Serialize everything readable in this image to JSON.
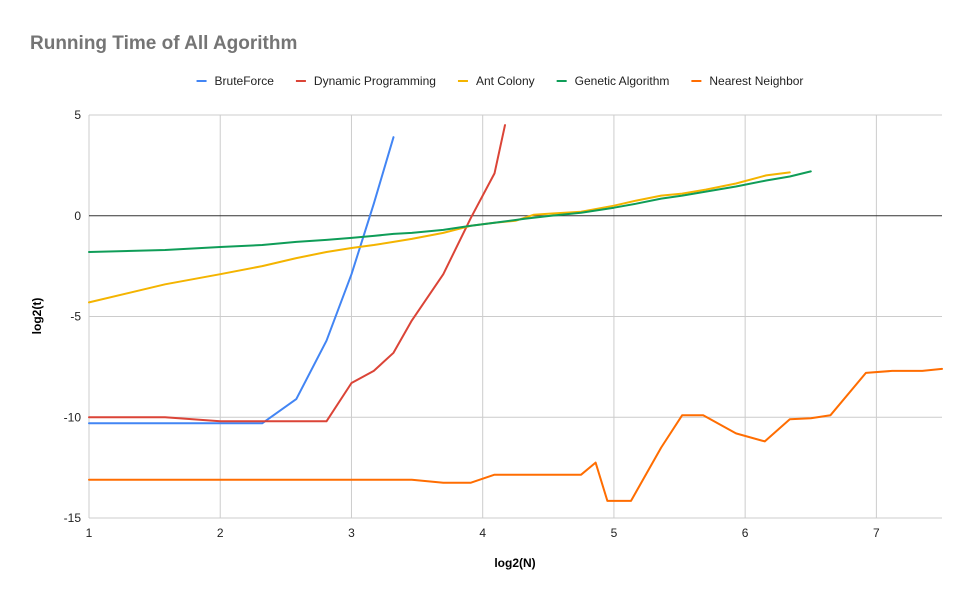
{
  "chart_data": {
    "type": "line",
    "title": "Running Time of All Agorithm",
    "xlabel": "log2(N)",
    "ylabel": "log2(t)",
    "xlim": [
      1,
      7.5
    ],
    "ylim": [
      -15,
      5
    ],
    "xticks": [
      "1",
      "2",
      "3",
      "4",
      "5",
      "6",
      "7"
    ],
    "yticks": [
      "5",
      "0",
      "-5",
      "-10",
      "-15"
    ],
    "grid": true,
    "legend_position": "top",
    "series": [
      {
        "name": "BruteForce",
        "color": "#4285f4",
        "points": [
          [
            1,
            -10.3
          ],
          [
            1.58,
            -10.3
          ],
          [
            2,
            -10.3
          ],
          [
            2.32,
            -10.3
          ],
          [
            2.58,
            -9.1
          ],
          [
            2.81,
            -6.2
          ],
          [
            3.0,
            -2.9
          ],
          [
            3.17,
            0.6
          ],
          [
            3.32,
            3.9
          ]
        ]
      },
      {
        "name": "Dynamic Programming",
        "color": "#db4437",
        "points": [
          [
            1,
            -10.0
          ],
          [
            1.58,
            -10.0
          ],
          [
            2,
            -10.2
          ],
          [
            2.32,
            -10.2
          ],
          [
            2.58,
            -10.2
          ],
          [
            2.81,
            -10.2
          ],
          [
            3.0,
            -8.3
          ],
          [
            3.17,
            -7.7
          ],
          [
            3.32,
            -6.8
          ],
          [
            3.46,
            -5.2
          ],
          [
            3.7,
            -2.9
          ],
          [
            3.91,
            -0.1
          ],
          [
            4.09,
            2.1
          ],
          [
            4.17,
            4.5
          ]
        ]
      },
      {
        "name": "Ant Colony",
        "color": "#f4b400",
        "points": [
          [
            1,
            -4.3
          ],
          [
            1.58,
            -3.4
          ],
          [
            2,
            -2.9
          ],
          [
            2.32,
            -2.5
          ],
          [
            2.58,
            -2.1
          ],
          [
            2.81,
            -1.8
          ],
          [
            3.0,
            -1.6
          ],
          [
            3.17,
            -1.45
          ],
          [
            3.32,
            -1.3
          ],
          [
            3.46,
            -1.15
          ],
          [
            3.7,
            -0.85
          ],
          [
            3.91,
            -0.5
          ],
          [
            4.09,
            -0.35
          ],
          [
            4.25,
            -0.25
          ],
          [
            4.39,
            0.05
          ],
          [
            4.5,
            0.1
          ],
          [
            4.75,
            0.2
          ],
          [
            5.0,
            0.5
          ],
          [
            5.17,
            0.75
          ],
          [
            5.36,
            1.0
          ],
          [
            5.52,
            1.1
          ],
          [
            5.7,
            1.3
          ],
          [
            5.93,
            1.6
          ],
          [
            6.16,
            2.0
          ],
          [
            6.34,
            2.15
          ]
        ]
      },
      {
        "name": "Genetic Algorithm",
        "color": "#0f9d58",
        "points": [
          [
            1,
            -1.8
          ],
          [
            1.58,
            -1.7
          ],
          [
            2,
            -1.55
          ],
          [
            2.32,
            -1.45
          ],
          [
            2.58,
            -1.3
          ],
          [
            2.81,
            -1.2
          ],
          [
            3.0,
            -1.1
          ],
          [
            3.17,
            -1.0
          ],
          [
            3.32,
            -0.9
          ],
          [
            3.46,
            -0.85
          ],
          [
            3.7,
            -0.7
          ],
          [
            3.91,
            -0.5
          ],
          [
            4.09,
            -0.35
          ],
          [
            4.32,
            -0.15
          ],
          [
            4.52,
            0.0
          ],
          [
            4.75,
            0.15
          ],
          [
            5.0,
            0.4
          ],
          [
            5.17,
            0.6
          ],
          [
            5.36,
            0.85
          ],
          [
            5.52,
            1.0
          ],
          [
            5.7,
            1.2
          ],
          [
            5.93,
            1.45
          ],
          [
            6.16,
            1.75
          ],
          [
            6.34,
            1.95
          ],
          [
            6.5,
            2.2
          ]
        ]
      },
      {
        "name": "Nearest Neighbor",
        "color": "#ff6d01",
        "points": [
          [
            1,
            -13.1
          ],
          [
            1.58,
            -13.1
          ],
          [
            2,
            -13.1
          ],
          [
            2.32,
            -13.1
          ],
          [
            2.58,
            -13.1
          ],
          [
            2.81,
            -13.1
          ],
          [
            3.0,
            -13.1
          ],
          [
            3.17,
            -13.1
          ],
          [
            3.32,
            -13.1
          ],
          [
            3.46,
            -13.1
          ],
          [
            3.7,
            -13.25
          ],
          [
            3.91,
            -13.25
          ],
          [
            4.09,
            -12.85
          ],
          [
            4.32,
            -12.85
          ],
          [
            4.52,
            -12.85
          ],
          [
            4.75,
            -12.85
          ],
          [
            4.86,
            -12.25
          ],
          [
            4.95,
            -14.15
          ],
          [
            5.13,
            -14.15
          ],
          [
            5.36,
            -11.5
          ],
          [
            5.52,
            -9.9
          ],
          [
            5.68,
            -9.9
          ],
          [
            5.93,
            -10.8
          ],
          [
            6.15,
            -11.2
          ],
          [
            6.34,
            -10.1
          ],
          [
            6.5,
            -10.05
          ],
          [
            6.65,
            -9.9
          ],
          [
            6.92,
            -7.8
          ],
          [
            7.12,
            -7.7
          ],
          [
            7.35,
            -7.7
          ],
          [
            7.5,
            -7.6
          ]
        ]
      }
    ]
  }
}
